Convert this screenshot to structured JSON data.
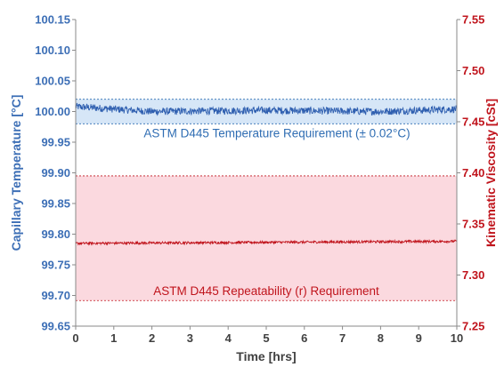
{
  "chart_data": {
    "type": "line",
    "x_axis": {
      "label": "Time [hrs]",
      "range": [
        0,
        10
      ],
      "ticks": [
        "0",
        "1",
        "2",
        "3",
        "4",
        "5",
        "6",
        "7",
        "8",
        "9",
        "10"
      ]
    },
    "y_axis_left": {
      "label": "Capillary Temperature [°C]",
      "range": [
        99.65,
        100.15
      ],
      "ticks": [
        "99.65",
        "99.70",
        "99.75",
        "99.80",
        "99.85",
        "99.90",
        "99.95",
        "100.00",
        "100.05",
        "100.10",
        "100.15"
      ],
      "color": "#3d6fb6"
    },
    "y_axis_right": {
      "label": "Kinematic Viscosity [cSt]",
      "range": [
        7.25,
        7.55
      ],
      "ticks": [
        "7.25",
        "7.30",
        "7.35",
        "7.40",
        "7.45",
        "7.50",
        "7.55"
      ],
      "color": "#c0141c"
    },
    "grid": false,
    "series": [
      {
        "axis": "left",
        "color": "#2f5fb0",
        "baseline": 100.003,
        "noise": 0.006,
        "drift": [
          [
            0,
            100.008
          ],
          [
            2,
            100.0
          ],
          [
            5,
            100.002
          ],
          [
            8,
            100.0
          ],
          [
            10,
            100.004
          ]
        ]
      },
      {
        "axis": "right",
        "color": "#c0141c",
        "baseline": 7.332,
        "noise": 0.0012,
        "drift": [
          [
            0,
            7.331
          ],
          [
            5,
            7.332
          ],
          [
            10,
            7.333
          ]
        ]
      }
    ],
    "bands": [
      {
        "axis": "left",
        "y0": 99.98,
        "y1": 100.02,
        "fill": "#d6e6f7",
        "border": "#2f6db3",
        "label": "ASTM D445 Temperature Requirement (± 0.02°C)",
        "label_y": 99.965
      },
      {
        "axis": "right",
        "y0": 7.275,
        "y1": 7.397,
        "fill": "#fbd9df",
        "border": "#c0141c",
        "label": "ASTM D445 Repeatability (r) Requirement",
        "label_y": 7.285
      }
    ]
  }
}
